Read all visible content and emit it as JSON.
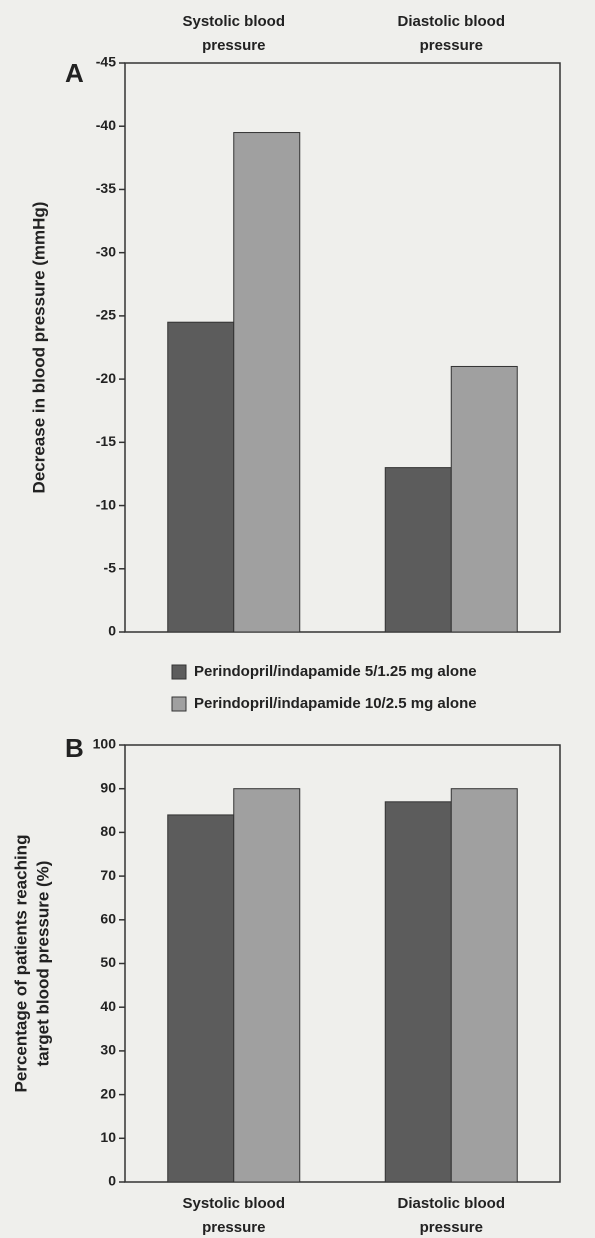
{
  "chart_data": [
    {
      "type": "bar",
      "panel": "A",
      "categories": [
        "Systolic blood pressure",
        "Diastolic blood pressure"
      ],
      "y_label": "Decrease in blood pressure (mmHg)",
      "series": [
        {
          "name": "Perindopril/indapamide 5/1.25 mg alone",
          "color": "#5c5c5c",
          "values": [
            -24.5,
            -13
          ]
        },
        {
          "name": "Perindopril/indapamide 10/2.5 mg alone",
          "color": "#a0a0a0",
          "values": [
            -39.5,
            -21
          ]
        }
      ],
      "ylim": [
        0,
        -45
      ],
      "yticks": [
        0,
        -5,
        -10,
        -15,
        -20,
        -25,
        -30,
        -35,
        -40,
        -45
      ]
    },
    {
      "type": "bar",
      "panel": "B",
      "categories": [
        "Systolic blood pressure",
        "Diastolic blood pressure"
      ],
      "y_label": [
        "Percentage of patients reaching",
        "target blood pressure (%)"
      ],
      "series": [
        {
          "color": "#5c5c5c",
          "values": [
            84,
            87
          ]
        },
        {
          "color": "#a0a0a0",
          "values": [
            90,
            90
          ]
        }
      ],
      "ylim": [
        0,
        100
      ],
      "yticks": [
        0,
        10,
        20,
        30,
        40,
        50,
        60,
        70,
        80,
        90,
        100
      ]
    }
  ]
}
